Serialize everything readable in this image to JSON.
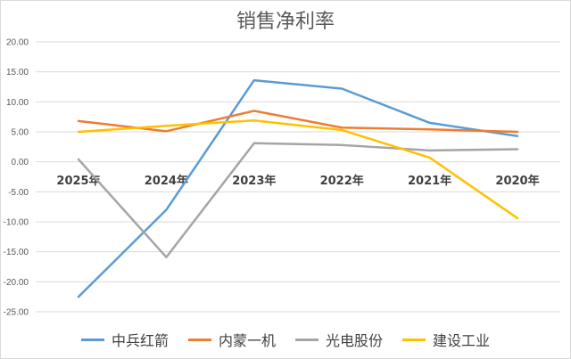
{
  "chart_data": {
    "type": "line",
    "title": "销售净利率",
    "categories": [
      "2025年",
      "2024年",
      "2023年",
      "2022年",
      "2021年",
      "2020年"
    ],
    "ylim": [
      -25,
      20
    ],
    "yticks": [
      "20.00",
      "15.00",
      "10.00",
      "5.00",
      "0.00",
      "-5.00",
      "-10.00",
      "-15.00",
      "-20.00",
      "-25.00"
    ],
    "ytick_values": [
      20,
      15,
      10,
      5,
      0,
      -5,
      -10,
      -15,
      -20,
      -25
    ],
    "grid": true,
    "legend_position": "bottom",
    "series": [
      {
        "name": "中兵红箭",
        "color": "#5B9BD5",
        "values": [
          -22.5,
          -8.0,
          13.6,
          12.2,
          6.5,
          4.3
        ]
      },
      {
        "name": "内蒙一机",
        "color": "#ED7D31",
        "values": [
          6.8,
          5.1,
          8.5,
          5.7,
          5.4,
          5.0
        ]
      },
      {
        "name": "光电股份",
        "color": "#A5A5A5",
        "values": [
          0.4,
          -15.9,
          3.1,
          2.8,
          1.9,
          2.1
        ]
      },
      {
        "name": "建设工业",
        "color": "#FFC000",
        "values": [
          5.0,
          6.0,
          6.9,
          5.3,
          0.7,
          -9.4
        ]
      }
    ]
  }
}
